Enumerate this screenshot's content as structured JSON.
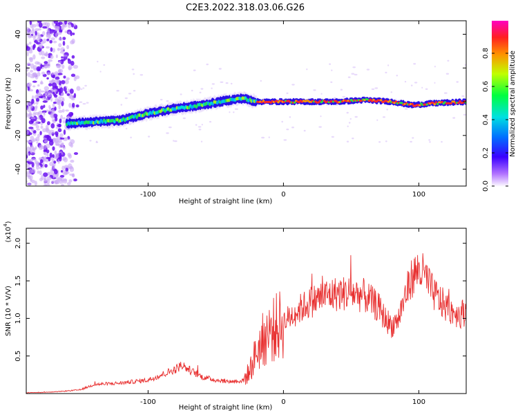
{
  "title": "C2E3.2022.318.03.06.G26",
  "colorbar": {
    "label": "Normalized spectral amplitude",
    "ticks": [
      "0.0",
      "0.2",
      "0.4",
      "0.6",
      "0.8"
    ]
  },
  "chart_data": [
    {
      "type": "heatmap",
      "xlabel": "Height of straight line (km)",
      "ylabel": "Frequency (Hz)",
      "xlim": [
        -190,
        135
      ],
      "ylim": [
        -50,
        48
      ],
      "xticks": [
        -100,
        0,
        100
      ],
      "yticks": [
        -40,
        -20,
        0,
        20,
        40
      ],
      "ridge": {
        "x": [
          -160,
          -140,
          -120,
          -100,
          -80,
          -60,
          -40,
          -30,
          -20,
          0,
          20,
          40,
          60,
          80,
          95,
          110,
          135
        ],
        "freq": [
          -13,
          -12,
          -11,
          -7,
          -4,
          -2,
          1,
          2,
          0,
          0,
          0,
          0,
          1,
          0,
          -2,
          -1,
          0
        ]
      },
      "scatter_noise_region_x": [
        -190,
        -155
      ]
    },
    {
      "type": "line",
      "xlabel": "Height of straight line (km)",
      "ylabel": "SNR (10 * V/V)",
      "yscale_label": "(x10",
      "yscale_exp": "4",
      "xlim": [
        -190,
        135
      ],
      "ylim": [
        0,
        2.2
      ],
      "xticks": [
        -100,
        0,
        100
      ],
      "yticks": [
        0.5,
        1.0,
        1.5,
        2.0
      ],
      "ytick_labels": [
        "0.5",
        "1.0",
        "1.5",
        "2.0"
      ],
      "color": "#e83030",
      "series": [
        {
          "x": [
            -190,
            -170,
            -150,
            -140,
            -120,
            -100,
            -90,
            -80,
            -75,
            -70,
            -60,
            -50,
            -40,
            -30,
            -25,
            -20,
            -15,
            -10,
            -5,
            0,
            10,
            20,
            30,
            40,
            50,
            60,
            70,
            75,
            80,
            85,
            90,
            95,
            100,
            105,
            110,
            115,
            120,
            125,
            130,
            135
          ],
          "y": [
            0.01,
            0.02,
            0.05,
            0.12,
            0.14,
            0.18,
            0.25,
            0.32,
            0.38,
            0.32,
            0.22,
            0.18,
            0.16,
            0.17,
            0.3,
            0.55,
            0.72,
            0.82,
            0.88,
            0.95,
            1.1,
            1.22,
            1.3,
            1.33,
            1.34,
            1.3,
            1.15,
            1.0,
            0.9,
            1.0,
            1.3,
            1.55,
            1.65,
            1.55,
            1.35,
            1.25,
            1.15,
            1.1,
            1.05,
            1.1
          ]
        }
      ]
    }
  ]
}
